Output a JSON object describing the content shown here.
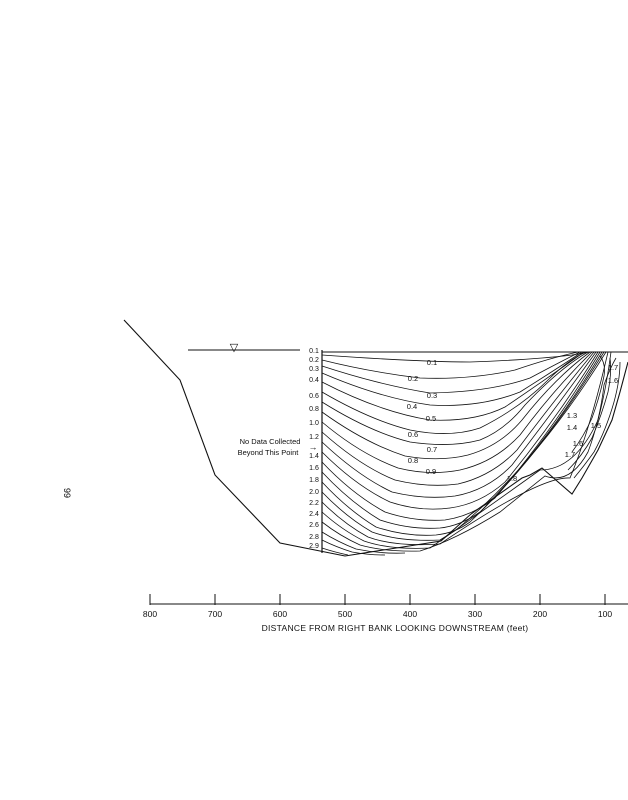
{
  "page": {
    "page_number": "99"
  },
  "figure": {
    "annotation_line1": "No Data Collected",
    "annotation_line2": "Beyond This Point",
    "annotation_arrow": "→",
    "water_surface_symbol": "▽",
    "depth_scale_labels": [
      "0.1",
      "0.2",
      "0.3",
      "0.4",
      "0.6",
      "0.8",
      "1.0",
      "1.2",
      "1.4",
      "1.6",
      "1.8",
      "2.0",
      "2.2",
      "2.4",
      "2.6",
      "2.8",
      "2.9"
    ],
    "contour_labels": {
      "c01": "0.1",
      "c02": "0.2",
      "c03": "0.3",
      "c04": "0.4",
      "c05": "0.5",
      "c06": "0.6",
      "c07": "0.7",
      "c08": "0.8",
      "c09": "0.9",
      "c13": "1.3",
      "c14": "1.4",
      "c15": "1.5",
      "c16a": "1.6",
      "c16b": "1.6",
      "c17a": "1.7",
      "c17b": "1.7",
      "c18": "1.8"
    },
    "x_axis": {
      "title": "DISTANCE FROM RIGHT BANK LOOKING DOWNSTREAM (feet)",
      "tick_labels": [
        "800",
        "700",
        "600",
        "500",
        "400",
        "300",
        "200",
        "100"
      ]
    }
  }
}
